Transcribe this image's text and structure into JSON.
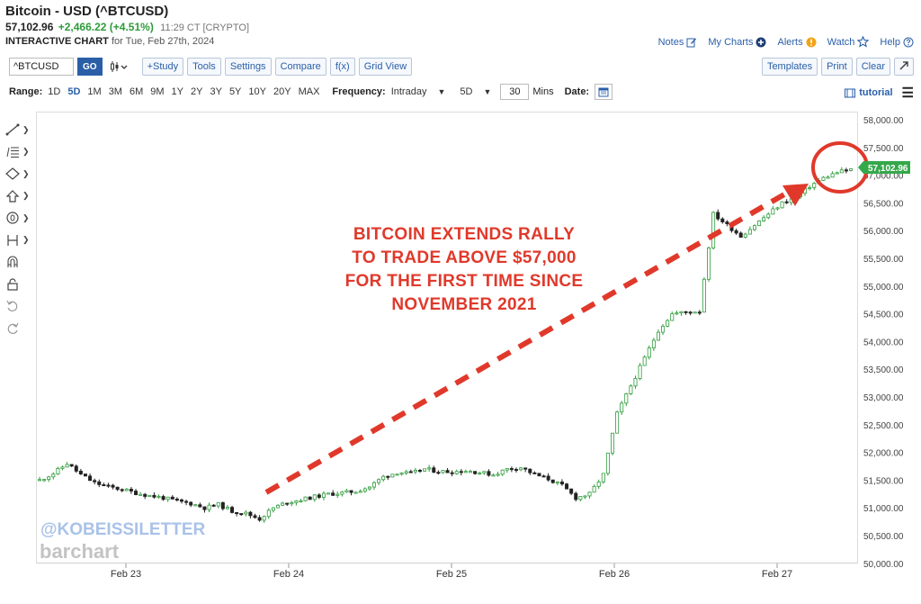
{
  "header": {
    "title": "Bitcoin - USD (^BTCUSD)",
    "price": "57,102.96",
    "change": "+2,466.22 (+4.51%)",
    "time": "11:29 CT [CRYPTO]",
    "chart_label": "INTERACTIVE CHART",
    "chart_date": "for Tue, Feb 27th, 2024"
  },
  "toplinks": {
    "notes": "Notes",
    "my_charts": "My Charts",
    "alerts": "Alerts",
    "watch": "Watch",
    "help": "Help"
  },
  "toolbar": {
    "symbol_value": "^BTCUSD",
    "go_label": "GO",
    "study_label": "+Study",
    "tools_label": "Tools",
    "settings_label": "Settings",
    "compare_label": "Compare",
    "fx_label": "f(x)",
    "gridview_label": "Grid View",
    "templates_label": "Templates",
    "print_label": "Print",
    "clear_label": "Clear"
  },
  "rangebar": {
    "range_label": "Range:",
    "ranges": [
      "1D",
      "5D",
      "1M",
      "3M",
      "6M",
      "9M",
      "1Y",
      "2Y",
      "3Y",
      "5Y",
      "10Y",
      "20Y",
      "MAX"
    ],
    "active_range": "5D",
    "frequency_label": "Frequency:",
    "frequency_value": "Intraday",
    "period_value": "5D",
    "minutes_value": "30",
    "minutes_label": "Mins",
    "date_label": "Date:",
    "tutorial_label": "tutorial"
  },
  "annotation": {
    "lines": [
      "BITCOIN EXTENDS RALLY",
      "TO TRADE ABOVE $57,000",
      "FOR THE FIRST TIME SINCE",
      "NOVEMBER 2021"
    ],
    "color": "#e0392b"
  },
  "watermark": {
    "handle": "@KOBEISSILETTER",
    "brand": "barchart"
  },
  "colors": {
    "up": "#2e9b3a",
    "down": "#222222",
    "accent": "#2a5fa8",
    "price_tag": "#35a84a"
  },
  "chart_data": {
    "type": "candlestick",
    "ylim": [
      50000,
      58000
    ],
    "yticks": [
      "58,000.00",
      "57,500.00",
      "57,000.00",
      "56,500.00",
      "56,000.00",
      "55,500.00",
      "55,000.00",
      "54,500.00",
      "54,000.00",
      "53,500.00",
      "53,000.00",
      "52,500.00",
      "52,000.00",
      "51,500.00",
      "51,000.00",
      "50,500.00",
      "50,000.00"
    ],
    "xticks": [
      "Feb 23",
      "Feb 24",
      "Feb 25",
      "Feb 26",
      "Feb 27"
    ],
    "last_price_label": "57,102.96",
    "last_price": 57102.96,
    "approx_close_series": [
      [
        0,
        51500
      ],
      [
        3,
        51620
      ],
      [
        6,
        51800
      ],
      [
        9,
        51600
      ],
      [
        12,
        51450
      ],
      [
        15,
        51380
      ],
      [
        18,
        51330
      ],
      [
        21,
        51270
      ],
      [
        24,
        51220
      ],
      [
        27,
        51180
      ],
      [
        30,
        51120
      ],
      [
        33,
        51080
      ],
      [
        36,
        51000
      ],
      [
        39,
        51060
      ],
      [
        42,
        50940
      ],
      [
        45,
        50900
      ],
      [
        48,
        50800
      ],
      [
        51,
        51000
      ],
      [
        54,
        51100
      ],
      [
        57,
        51150
      ],
      [
        60,
        51200
      ],
      [
        63,
        51250
      ],
      [
        66,
        51270
      ],
      [
        69,
        51300
      ],
      [
        72,
        51380
      ],
      [
        75,
        51560
      ],
      [
        78,
        51640
      ],
      [
        81,
        51620
      ],
      [
        84,
        51700
      ],
      [
        87,
        51660
      ],
      [
        90,
        51650
      ],
      [
        93,
        51670
      ],
      [
        96,
        51640
      ],
      [
        99,
        51600
      ],
      [
        102,
        51700
      ],
      [
        105,
        51730
      ],
      [
        108,
        51600
      ],
      [
        111,
        51520
      ],
      [
        114,
        51400
      ],
      [
        117,
        51180
      ],
      [
        120,
        51250
      ],
      [
        123,
        51600
      ],
      [
        126,
        52700
      ],
      [
        129,
        53200
      ],
      [
        132,
        53700
      ],
      [
        135,
        54200
      ],
      [
        138,
        54500
      ],
      [
        141,
        54530
      ],
      [
        144,
        54550
      ],
      [
        147,
        56300
      ],
      [
        150,
        56100
      ],
      [
        153,
        55900
      ],
      [
        156,
        56100
      ],
      [
        159,
        56300
      ],
      [
        162,
        56500
      ],
      [
        165,
        56600
      ],
      [
        168,
        56800
      ],
      [
        171,
        56950
      ],
      [
        174,
        57050
      ],
      [
        177,
        57102.96
      ]
    ]
  }
}
